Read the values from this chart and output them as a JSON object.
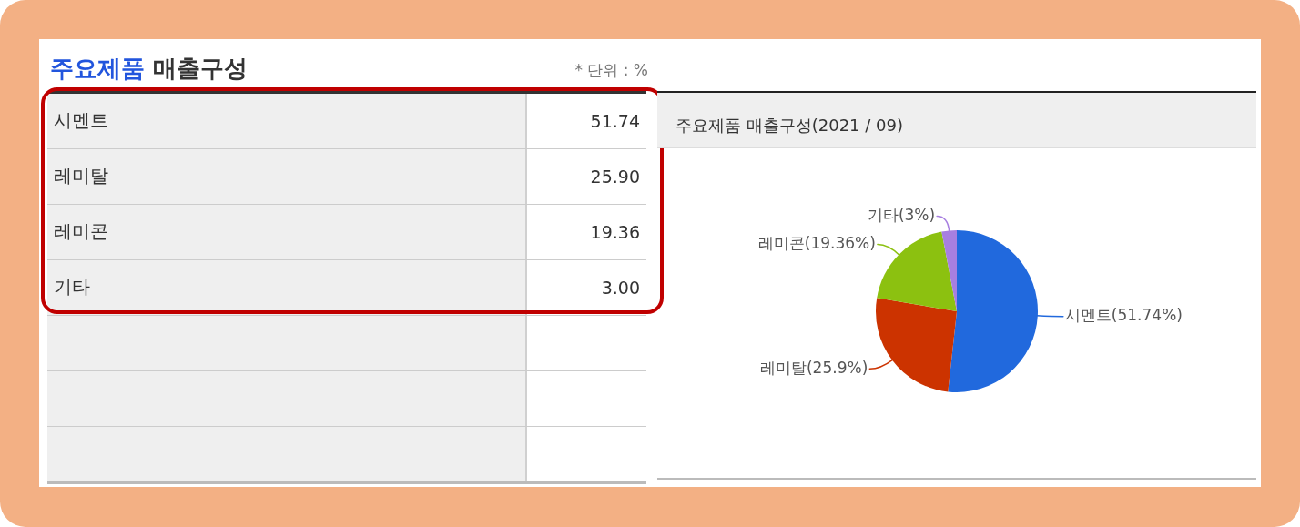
{
  "chart_data": [
    {
      "type": "other",
      "title": "주요제품 매출구성",
      "subtitle": "* 단위 : %",
      "categories": [
        "시멘트",
        "레미탈",
        "레미콘",
        "기타"
      ],
      "value_labels": [
        "51.74",
        "25.90",
        "19.36",
        "3.00"
      ]
    },
    {
      "type": "pie",
      "title": "주요제품 매출구성(2021 / 09)",
      "categories": [
        "시멘트",
        "레미탈",
        "레미콘",
        "기타"
      ],
      "values": [
        51.74,
        25.9,
        19.36,
        3
      ],
      "colors": [
        "#2169dd",
        "#cc3300",
        "#8cc110",
        "#a77fe0"
      ],
      "value_labels": [
        "(51.74%)",
        "(25.9%)",
        "(19.36%)",
        "(3%)"
      ]
    }
  ]
}
